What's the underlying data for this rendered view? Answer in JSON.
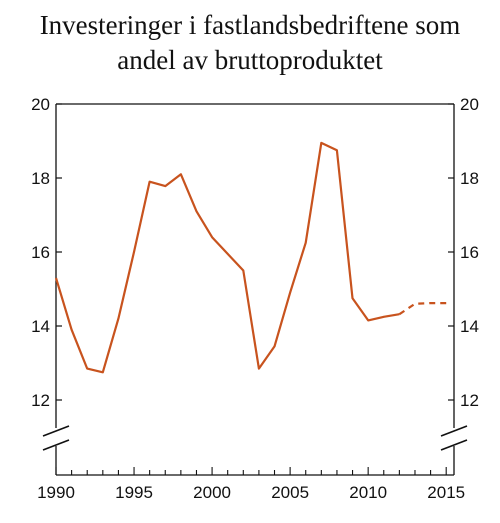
{
  "chart_data": {
    "type": "line",
    "title_lines": [
      "Investeringer i fastlandsbedriftene som",
      "andel av bruttoproduktet"
    ],
    "xlabel": "",
    "ylabel": "",
    "xlim": [
      1990,
      2015.5
    ],
    "ylim": [
      11,
      20
    ],
    "axis_break_y": true,
    "grid": false,
    "legend": "none",
    "x_ticks": [
      1990,
      1995,
      2000,
      2005,
      2010,
      2015
    ],
    "y_ticks": [
      12,
      14,
      16,
      18,
      20
    ],
    "y_ticks_right": [
      12,
      14,
      16,
      18,
      20
    ],
    "color": "#c8531e",
    "series": [
      {
        "style": "solid",
        "x": [
          1990,
          1991,
          1992,
          1993,
          1994,
          1995,
          1996,
          1997,
          1998,
          1999,
          2000,
          2001,
          2002,
          2003,
          2004,
          2005,
          2006,
          2007,
          2008,
          2009,
          2010,
          2011,
          2012
        ],
        "y": [
          15.3,
          13.9,
          12.85,
          12.75,
          14.2,
          16.0,
          17.9,
          17.78,
          18.1,
          17.1,
          16.4,
          15.95,
          15.5,
          12.85,
          13.45,
          14.9,
          16.25,
          18.95,
          18.75,
          14.75,
          14.15,
          14.25,
          14.32
        ]
      },
      {
        "style": "dashed",
        "x": [
          2012,
          2013,
          2014,
          2015
        ],
        "y": [
          14.32,
          14.6,
          14.62,
          14.62
        ]
      }
    ]
  }
}
